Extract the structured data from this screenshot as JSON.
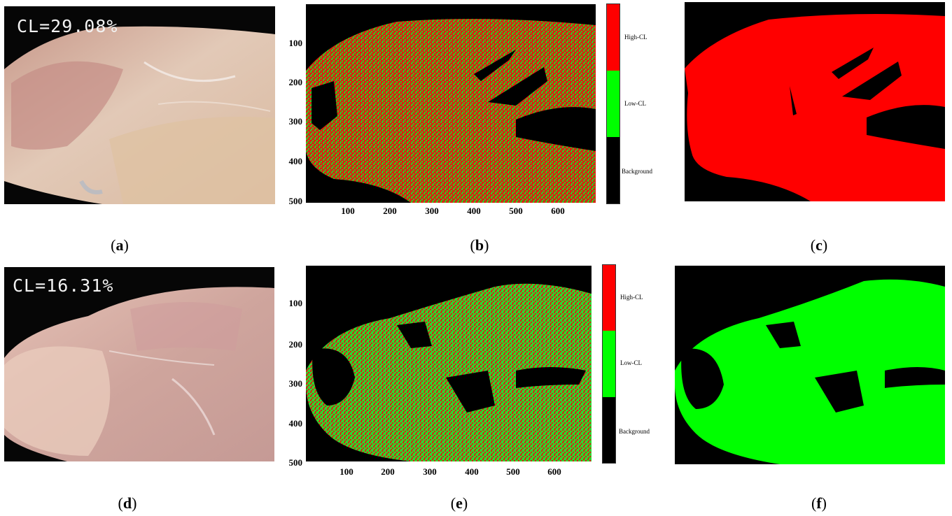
{
  "rows": [
    {
      "photo_label": "CL=29.08%",
      "captions": [
        "a",
        "b",
        "c"
      ],
      "map_y_ticks": [
        "100",
        "200",
        "300",
        "400",
        "500"
      ],
      "map_x_ticks": [
        "100",
        "200",
        "300",
        "400",
        "500",
        "600"
      ],
      "colorbar_labels": [
        "High-CL",
        "Low-CL",
        "Background"
      ],
      "dominant_class": "High-CL",
      "colors": {
        "high": "#ff0000",
        "low": "#00ff00",
        "background": "#000000"
      }
    },
    {
      "photo_label": "CL=16.31%",
      "captions": [
        "d",
        "e",
        "f"
      ],
      "map_y_ticks": [
        "100",
        "200",
        "300",
        "400",
        "500"
      ],
      "map_x_ticks": [
        "100",
        "200",
        "300",
        "400",
        "500",
        "600"
      ],
      "colorbar_labels": [
        "High-CL",
        "Low-CL",
        "Background"
      ],
      "dominant_class": "Low-CL",
      "colors": {
        "high": "#ff0000",
        "low": "#00ff00",
        "background": "#000000"
      }
    }
  ]
}
